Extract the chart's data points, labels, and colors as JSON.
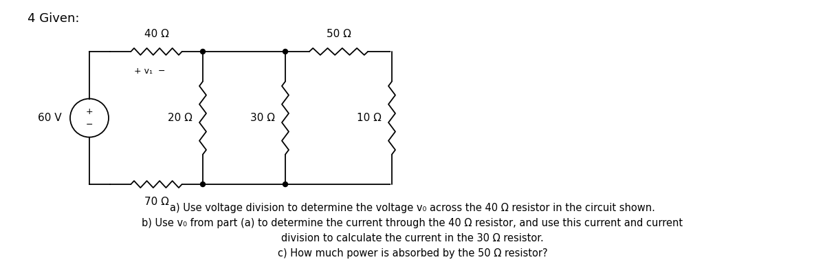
{
  "bg_color": "#ffffff",
  "line_color": "#000000",
  "title": "4 Given:",
  "circuit": {
    "source_voltage": "60 V",
    "r_top_left": "40 Ω",
    "r_top_right": "50 Ω",
    "r_bottom": "70 Ω",
    "r_vert1": "20 Ω",
    "r_vert2": "30 Ω",
    "r_vert3": "10 Ω"
  },
  "q1": "a) Use voltage division to determine the voltage v₀ across the 40 Ω resistor in the circuit shown.",
  "q2": "b) Use v₀ from part (a) to determine the current through the 40 Ω resistor, and use this current and current",
  "q3": "division to calculate the current in the 30 Ω resistor.",
  "q4": "c) How much power is absorbed by the 50 Ω resistor?"
}
